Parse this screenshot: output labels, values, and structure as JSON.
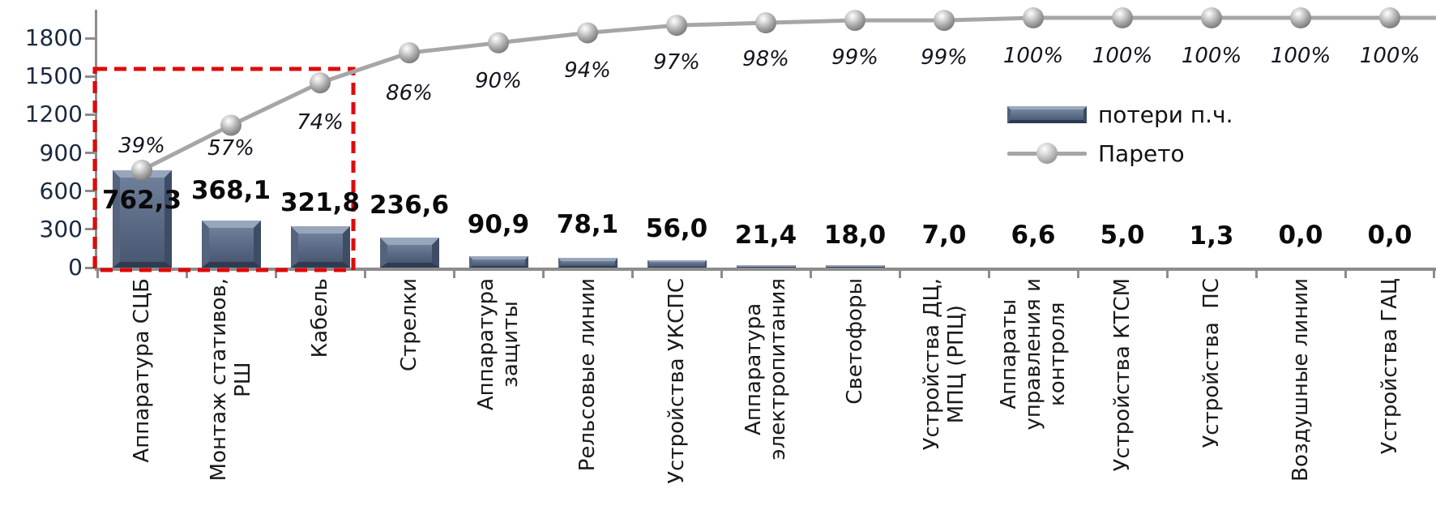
{
  "chart_data": {
    "type": "pareto",
    "title": "",
    "categories": [
      "Аппаратура СЦБ",
      "Монтаж стативов,\nРШ",
      "Кабель",
      "Стрелки",
      "Аппаратура\nзащиты",
      "Рельсовые линии",
      "Устройства УКСПС",
      "Аппаратура\nэлектропитания",
      "Светофоры",
      "Устройства ДЦ,\nМПЦ (РПЦ)",
      "Аппараты\nуправления и\nконтроля",
      "Устройства КТСМ",
      "Устройства  ПС",
      "Воздушные линии",
      "Устройства ГАЦ"
    ],
    "series": [
      {
        "name": "потери п.ч.",
        "chart_type": "bar",
        "values": [
          762.3,
          368.1,
          321.8,
          236.6,
          90.9,
          78.1,
          56.0,
          21.4,
          18.0,
          7.0,
          6.6,
          5.0,
          1.3,
          0.0,
          0.0
        ],
        "value_labels": [
          "762,3",
          "368,1",
          "321,8",
          "236,6",
          "90,9",
          "78,1",
          "56,0",
          "21,4",
          "18,0",
          "7,0",
          "6,6",
          "5,0",
          "1,3",
          "0,0",
          "0,0"
        ]
      },
      {
        "name": "Парето",
        "chart_type": "line",
        "values_percent": [
          39,
          57,
          74,
          86,
          90,
          94,
          97,
          98,
          99,
          99,
          100,
          100,
          100,
          100,
          100
        ],
        "point_labels": [
          "39%",
          "57%",
          "74%",
          "86%",
          "90%",
          "94%",
          "97%",
          "98%",
          "99%",
          "99%",
          "100%",
          "100%",
          "100%",
          "100%",
          "100%"
        ]
      }
    ],
    "y_axis": {
      "ticks": [
        0,
        300,
        600,
        900,
        1200,
        1500,
        1800
      ],
      "min": 0,
      "max": 1800
    },
    "legend": {
      "position": "middle-right",
      "entries": [
        "потери п.ч.",
        "Парето"
      ]
    },
    "annotation": {
      "type": "highlight-box",
      "style": "red-dashed",
      "covers_categories": [
        "Аппаратура СЦБ",
        "Монтаж стативов, РШ",
        "Кабель"
      ]
    },
    "grid": "off",
    "colors": {
      "bar_face_top": "#6e7f99",
      "bar_face_bottom": "#4a5872",
      "bar_bevel_light": "#98a6bb",
      "bar_bevel_left": "#55647e",
      "bar_bevel_right": "#3e4c66",
      "bar_bevel_bottom": "#2e3b52",
      "line": "#a6a6a6",
      "marker": "#b9b9b9",
      "axis": "#8c8c8c",
      "highlight_box": "#e00a0a",
      "axis_tick_text": "#1b2a3f",
      "value_text": "#0a0a0a"
    }
  }
}
